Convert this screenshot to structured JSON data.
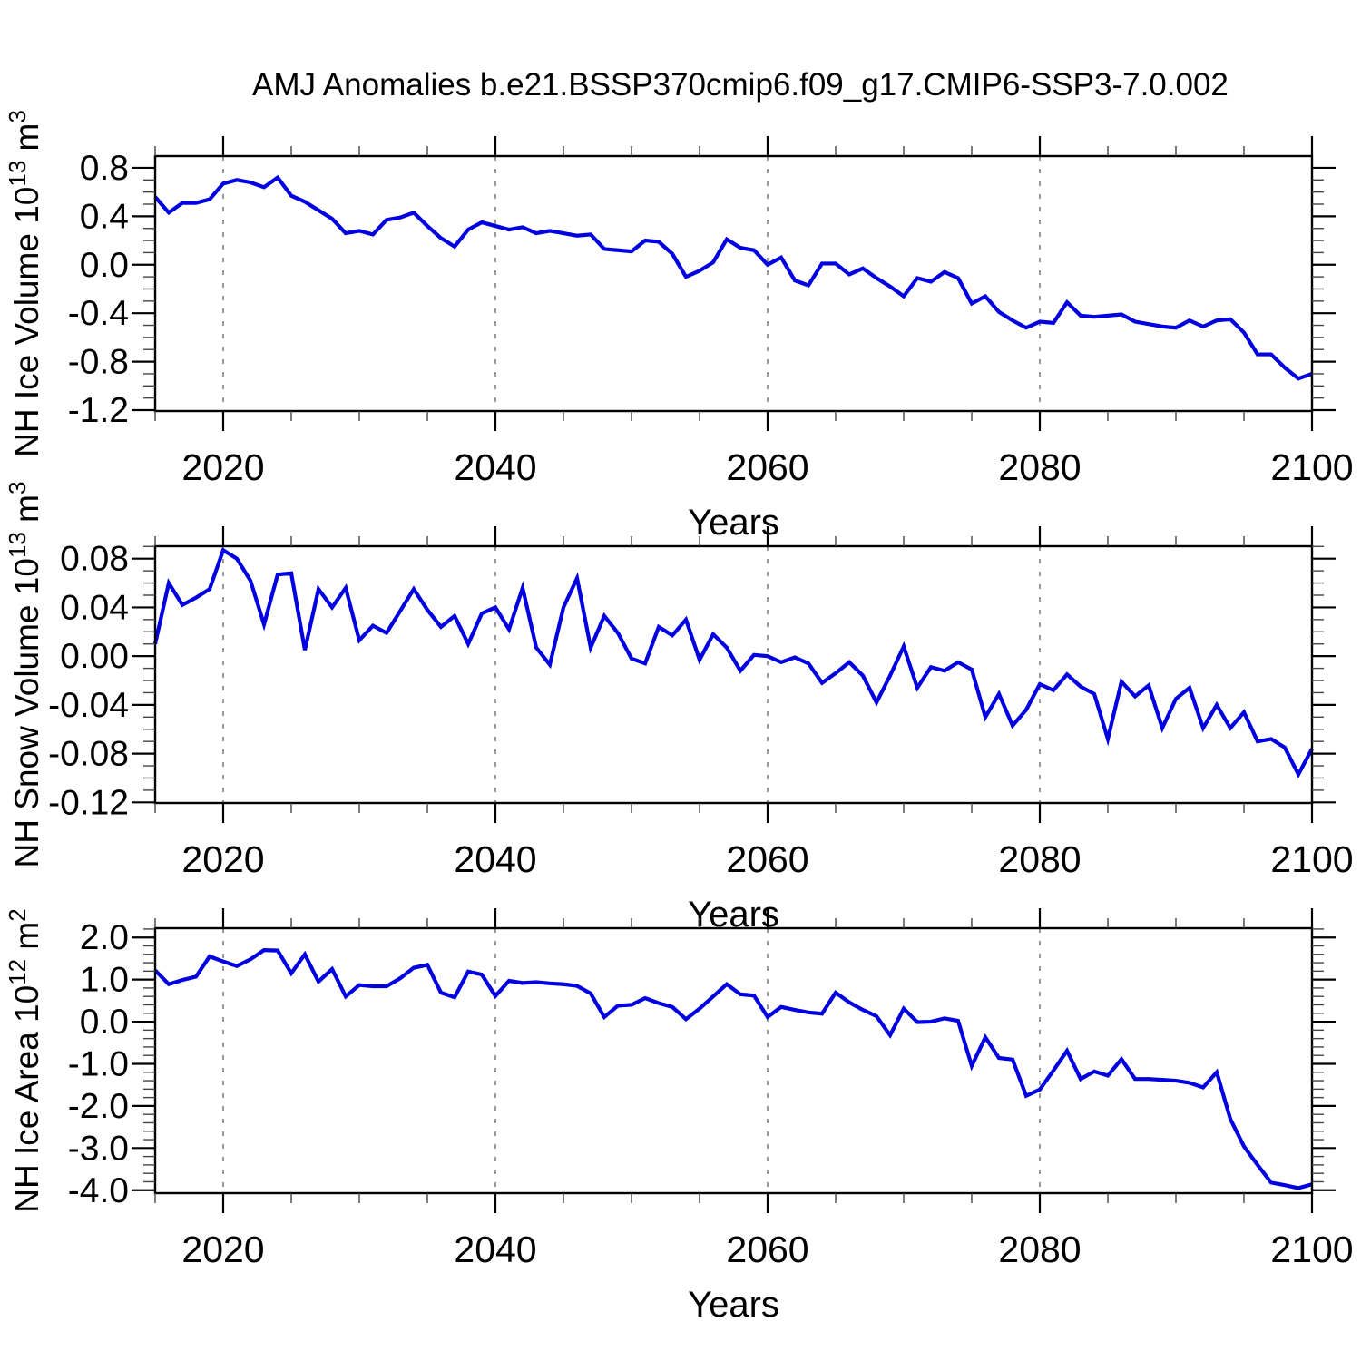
{
  "title": "AMJ Anomalies b.e21.BSSP370cmip6.f09_g17.CMIP6-SSP3-7.0.002",
  "colors": {
    "line": "#0000e0",
    "grid": "#808080",
    "axis": "#000000",
    "minor_tick": "#444444",
    "background": "#ffffff"
  },
  "x_axis": {
    "label": "Years",
    "range": [
      2015,
      2100
    ],
    "major_ticks": [
      {
        "v": 2020,
        "label": "2020"
      },
      {
        "v": 2040,
        "label": "2040"
      },
      {
        "v": 2060,
        "label": "2060"
      },
      {
        "v": 2080,
        "label": "2080"
      },
      {
        "v": 2100,
        "label": "2100"
      }
    ],
    "minor_step": 5,
    "gridlines": [
      2020,
      2040,
      2060,
      2080
    ],
    "years": [
      2015,
      2016,
      2017,
      2018,
      2019,
      2020,
      2021,
      2022,
      2023,
      2024,
      2025,
      2026,
      2027,
      2028,
      2029,
      2030,
      2031,
      2032,
      2033,
      2034,
      2035,
      2036,
      2037,
      2038,
      2039,
      2040,
      2041,
      2042,
      2043,
      2044,
      2045,
      2046,
      2047,
      2048,
      2049,
      2050,
      2051,
      2052,
      2053,
      2054,
      2055,
      2056,
      2057,
      2058,
      2059,
      2060,
      2061,
      2062,
      2063,
      2064,
      2065,
      2066,
      2067,
      2068,
      2069,
      2070,
      2071,
      2072,
      2073,
      2074,
      2075,
      2076,
      2077,
      2078,
      2079,
      2080,
      2081,
      2082,
      2083,
      2084,
      2085,
      2086,
      2087,
      2088,
      2089,
      2090,
      2091,
      2092,
      2093,
      2094,
      2095,
      2096,
      2097,
      2098,
      2099,
      2100
    ]
  },
  "chart_data": [
    {
      "type": "line",
      "id": "nh-ice-volume",
      "ylabel_plain": "NH Ice Volume 10^13 m^3",
      "ylabel_parts": [
        {
          "t": "NH Ice Volume 10"
        },
        {
          "s": "13"
        },
        {
          "t": " m"
        },
        {
          "s": "3"
        }
      ],
      "xlabel": "Years",
      "ylim": [
        -1.2075,
        0.897
      ],
      "y_minor_step": 0.1,
      "yticks": [
        {
          "v": 0.8,
          "label": "0.8"
        },
        {
          "v": 0.4,
          "label": "0.4"
        },
        {
          "v": 0.0,
          "label": "0.0"
        },
        {
          "v": -0.4,
          "label": "-0.4"
        },
        {
          "v": -0.8,
          "label": "-0.8"
        },
        {
          "v": -1.2,
          "label": "-1.2"
        }
      ],
      "values": [
        0.56,
        0.43,
        0.51,
        0.51,
        0.54,
        0.67,
        0.7,
        0.68,
        0.64,
        0.72,
        0.57,
        0.52,
        0.45,
        0.38,
        0.26,
        0.28,
        0.25,
        0.37,
        0.39,
        0.43,
        0.32,
        0.22,
        0.15,
        0.29,
        0.35,
        0.32,
        0.29,
        0.31,
        0.26,
        0.28,
        0.26,
        0.24,
        0.25,
        0.13,
        0.12,
        0.11,
        0.2,
        0.19,
        0.09,
        -0.1,
        -0.05,
        0.02,
        0.21,
        0.14,
        0.12,
        0.0,
        0.06,
        -0.13,
        -0.17,
        0.01,
        0.01,
        -0.08,
        -0.03,
        -0.11,
        -0.18,
        -0.26,
        -0.11,
        -0.14,
        -0.06,
        -0.11,
        -0.32,
        -0.26,
        -0.39,
        -0.46,
        -0.52,
        -0.47,
        -0.48,
        -0.31,
        -0.42,
        -0.43,
        -0.42,
        -0.41,
        -0.47,
        -0.49,
        -0.51,
        -0.52,
        -0.46,
        -0.51,
        -0.46,
        -0.45,
        -0.56,
        -0.74,
        -0.74,
        -0.85,
        -0.94,
        -0.9
      ]
    },
    {
      "type": "line",
      "id": "nh-snow-volume",
      "ylabel_plain": "NH Snow Volume 10^13 m^3",
      "ylabel_parts": [
        {
          "t": "NH Snow Volume 10"
        },
        {
          "s": "13"
        },
        {
          "t": " m"
        },
        {
          "s": "3"
        }
      ],
      "xlabel": "Years",
      "ylim": [
        -0.1205,
        0.0902
      ],
      "y_minor_step": 0.01,
      "yticks": [
        {
          "v": 0.08,
          "label": "0.08"
        },
        {
          "v": 0.04,
          "label": "0.04"
        },
        {
          "v": 0.0,
          "label": "0.00"
        },
        {
          "v": -0.04,
          "label": "-0.04"
        },
        {
          "v": -0.08,
          "label": "-0.08"
        },
        {
          "v": -0.12,
          "label": "-0.12"
        }
      ],
      "values": [
        0.01,
        0.06,
        0.042,
        0.048,
        0.055,
        0.087,
        0.08,
        0.062,
        0.026,
        0.067,
        0.068,
        0.005,
        0.055,
        0.04,
        0.056,
        0.013,
        0.025,
        0.019,
        0.037,
        0.055,
        0.038,
        0.024,
        0.033,
        0.01,
        0.035,
        0.04,
        0.022,
        0.056,
        0.007,
        -0.007,
        0.04,
        0.064,
        0.007,
        0.033,
        0.019,
        -0.002,
        -0.006,
        0.024,
        0.017,
        0.03,
        -0.003,
        0.018,
        0.007,
        -0.012,
        0.001,
        0.0,
        -0.005,
        -0.001,
        -0.006,
        -0.022,
        -0.014,
        -0.005,
        -0.016,
        -0.038,
        -0.016,
        0.008,
        -0.026,
        -0.009,
        -0.012,
        -0.005,
        -0.011,
        -0.05,
        -0.031,
        -0.057,
        -0.044,
        -0.023,
        -0.028,
        -0.015,
        -0.025,
        -0.031,
        -0.068,
        -0.021,
        -0.033,
        -0.024,
        -0.059,
        -0.035,
        -0.026,
        -0.059,
        -0.04,
        -0.059,
        -0.046,
        -0.07,
        -0.068,
        -0.075,
        -0.097,
        -0.076
      ]
    },
    {
      "type": "line",
      "id": "nh-ice-area",
      "ylabel_plain": "NH Ice Area 10^12 m^2",
      "ylabel_parts": [
        {
          "t": "NH Ice Area 10"
        },
        {
          "s": "12"
        },
        {
          "t": " m"
        },
        {
          "s": "2"
        }
      ],
      "xlabel": "Years",
      "ylim": [
        -4.07,
        2.22
      ],
      "y_minor_step": 0.2,
      "yticks": [
        {
          "v": 2.0,
          "label": "2.0"
        },
        {
          "v": 1.0,
          "label": "1.0"
        },
        {
          "v": 0.0,
          "label": "0.0"
        },
        {
          "v": -1.0,
          "label": "-1.0"
        },
        {
          "v": -2.0,
          "label": "-2.0"
        },
        {
          "v": -3.0,
          "label": "-3.0"
        },
        {
          "v": -4.0,
          "label": "-4.0"
        }
      ],
      "values": [
        1.22,
        0.89,
        0.99,
        1.07,
        1.55,
        1.43,
        1.32,
        1.48,
        1.7,
        1.69,
        1.15,
        1.6,
        0.95,
        1.25,
        0.6,
        0.87,
        0.84,
        0.84,
        1.03,
        1.28,
        1.35,
        0.69,
        0.58,
        1.19,
        1.12,
        0.61,
        0.97,
        0.92,
        0.94,
        0.91,
        0.89,
        0.85,
        0.67,
        0.11,
        0.38,
        0.4,
        0.56,
        0.44,
        0.35,
        0.06,
        0.31,
        0.6,
        0.89,
        0.65,
        0.62,
        0.11,
        0.35,
        0.28,
        0.22,
        0.19,
        0.69,
        0.46,
        0.28,
        0.13,
        -0.32,
        0.31,
        -0.01,
        0.0,
        0.08,
        0.02,
        -1.05,
        -0.37,
        -0.86,
        -0.9,
        -1.76,
        -1.61,
        -1.16,
        -0.69,
        -1.36,
        -1.18,
        -1.28,
        -0.89,
        -1.36,
        -1.36,
        -1.38,
        -1.4,
        -1.45,
        -1.56,
        -1.2,
        -2.31,
        -2.96,
        -3.4,
        -3.82,
        -3.88,
        -3.95,
        -3.86
      ]
    }
  ]
}
